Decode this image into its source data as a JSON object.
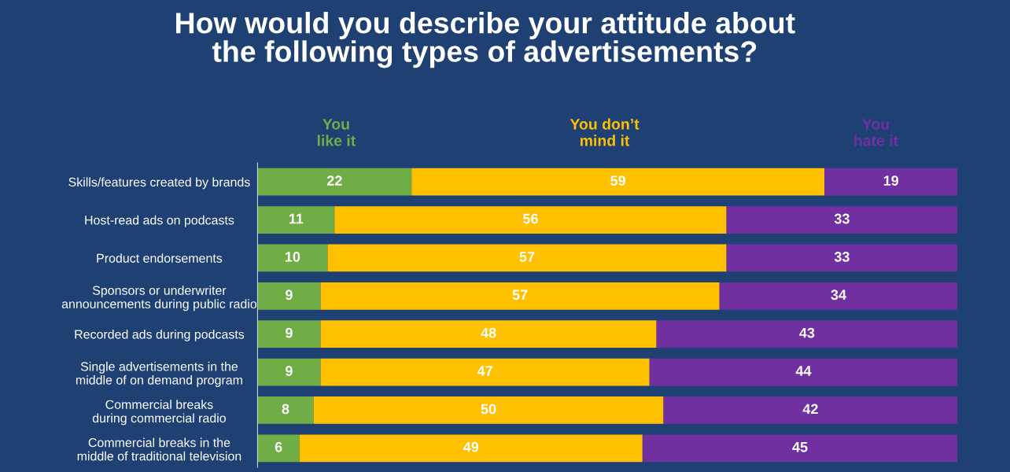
{
  "chart_data": {
    "type": "bar",
    "orientation": "horizontal",
    "stacked": true,
    "title": "How would you describe your attitude about\nthe following types of advertisements?",
    "categories": [
      "Skills/features created by brands",
      "Host-read ads on podcasts",
      "Product endorsements",
      "Sponsors or underwriter\nannouncements during public radio",
      "Recorded ads during podcasts",
      "Single advertisements in the\nmiddle of on demand program",
      "Commercial breaks\nduring commercial radio",
      "Commercial breaks in the\nmiddle of traditional television"
    ],
    "series": [
      {
        "name": "You\nlike it",
        "color": "#70ad47",
        "values": [
          22,
          11,
          10,
          9,
          9,
          9,
          8,
          6
        ]
      },
      {
        "name": "You don’t\nmind it",
        "color": "#ffc000",
        "values": [
          59,
          56,
          57,
          57,
          48,
          47,
          50,
          49
        ]
      },
      {
        "name": "You\nhate it",
        "color": "#7030a0",
        "values": [
          19,
          33,
          33,
          34,
          43,
          44,
          42,
          45
        ]
      }
    ],
    "xlim": [
      0,
      100
    ],
    "data_labels": true,
    "legend": "top",
    "grid": false,
    "tick_labels": "y"
  }
}
